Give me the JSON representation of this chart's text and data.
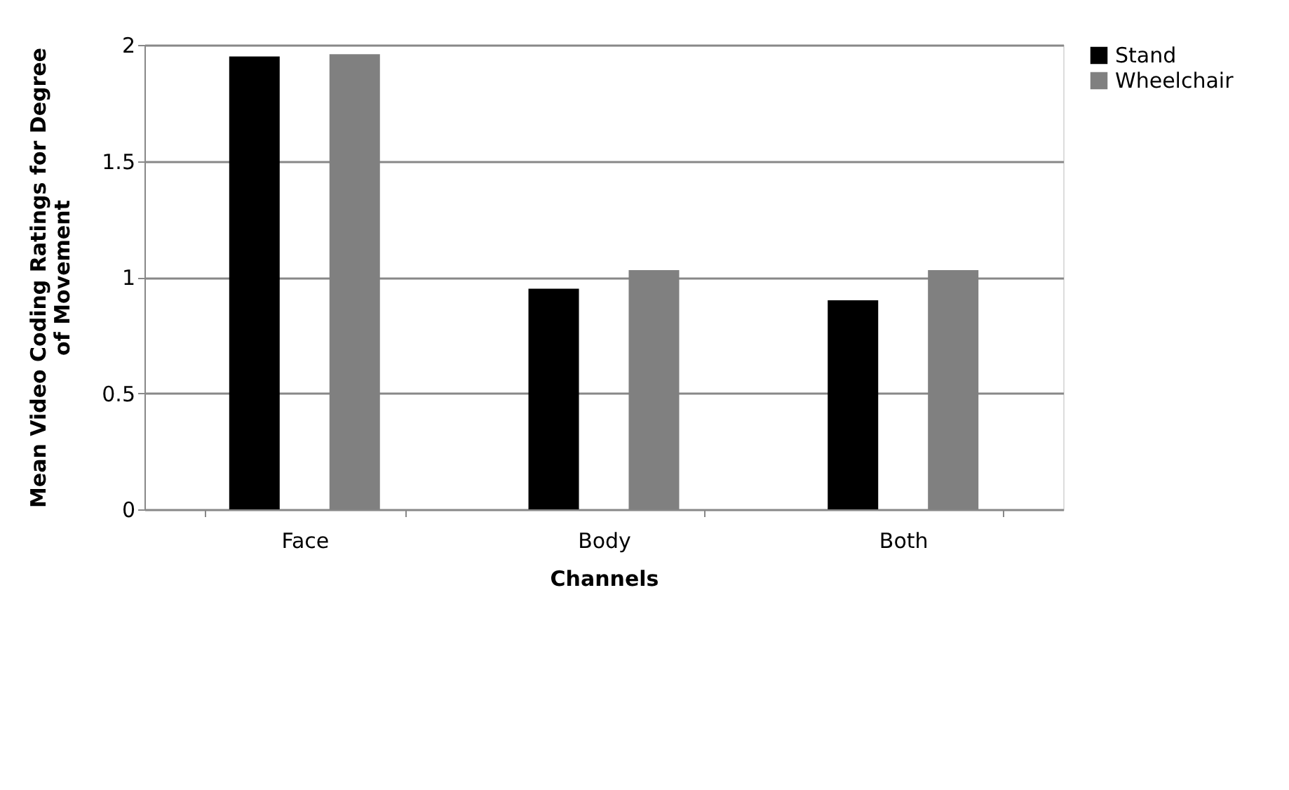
{
  "chart_data": {
    "type": "bar",
    "xlabel": "Channels",
    "ylabel": "Mean Video Coding Ratings for Degree of Movement",
    "categories": [
      "Face",
      "Body",
      "Both"
    ],
    "series": [
      {
        "name": "Stand",
        "color": "#000000",
        "values": [
          1.95,
          0.95,
          0.9
        ]
      },
      {
        "name": "Wheelchair",
        "color": "#808080",
        "values": [
          1.96,
          1.03,
          1.03
        ]
      }
    ],
    "ylim": [
      0,
      2
    ],
    "yticks": [
      0,
      0.5,
      1,
      1.5,
      2
    ],
    "grid": "y",
    "legend": "right"
  }
}
